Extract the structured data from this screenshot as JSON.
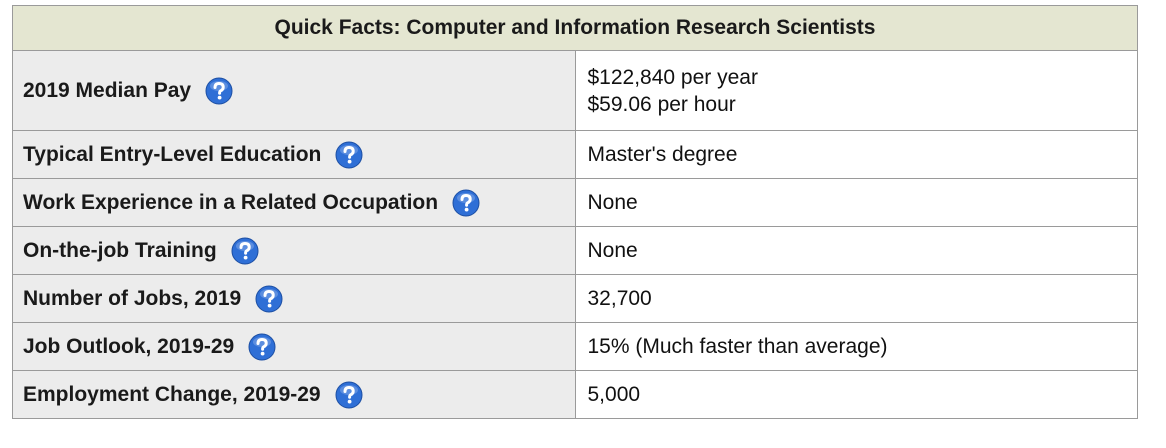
{
  "table": {
    "caption": "Quick Facts: Computer and Information Research Scientists",
    "help_icon": "question-mark-icon",
    "help_icon_color": "#2f6fd6",
    "rows": [
      {
        "label": "2019 Median Pay",
        "values": [
          "$122,840 per year",
          "$59.06 per hour"
        ]
      },
      {
        "label": "Typical Entry-Level Education",
        "values": [
          "Master's degree"
        ]
      },
      {
        "label": "Work Experience in a Related Occupation",
        "values": [
          "None"
        ]
      },
      {
        "label": "On-the-job Training",
        "values": [
          "None"
        ]
      },
      {
        "label": "Number of Jobs, 2019",
        "values": [
          "32,700"
        ]
      },
      {
        "label": "Job Outlook, 2019-29",
        "values": [
          "15% (Much faster than average)"
        ]
      },
      {
        "label": "Employment Change, 2019-29",
        "values": [
          "5,000"
        ]
      }
    ]
  }
}
